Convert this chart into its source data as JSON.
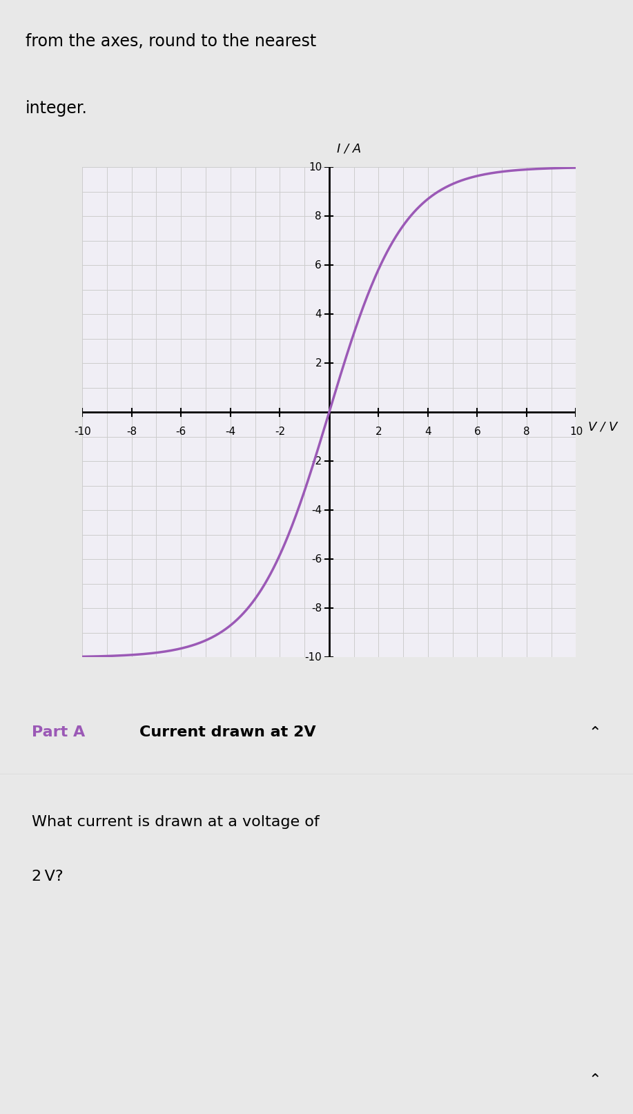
{
  "title_text": "from the axes, round to the nearest\ninteger.",
  "ylabel_text": "I / A",
  "xlabel_text": "V / V",
  "xmin": -10,
  "xmax": 10,
  "ymin": -10,
  "ymax": 10,
  "xticks": [
    -10,
    -8,
    -6,
    -4,
    -2,
    2,
    4,
    6,
    8,
    10
  ],
  "yticks": [
    -10,
    -8,
    -6,
    -4,
    -2,
    2,
    4,
    6,
    8,
    10
  ],
  "curve_color": "#9b59b6",
  "curve_linewidth": 2.5,
  "grid_color": "#cccccc",
  "background_color": "#f0eef5",
  "plot_bg_color": "#f0eef5",
  "part_a_label": "Part A",
  "part_a_color": "#9b59b6",
  "part_a_title": "Current drawn at 2V",
  "question_text": "What current is drawn at a voltage of\n2 V?",
  "panel_bg": "#ffffff",
  "header_bg": "#f5f5f5",
  "tanh_scale": 3.0
}
